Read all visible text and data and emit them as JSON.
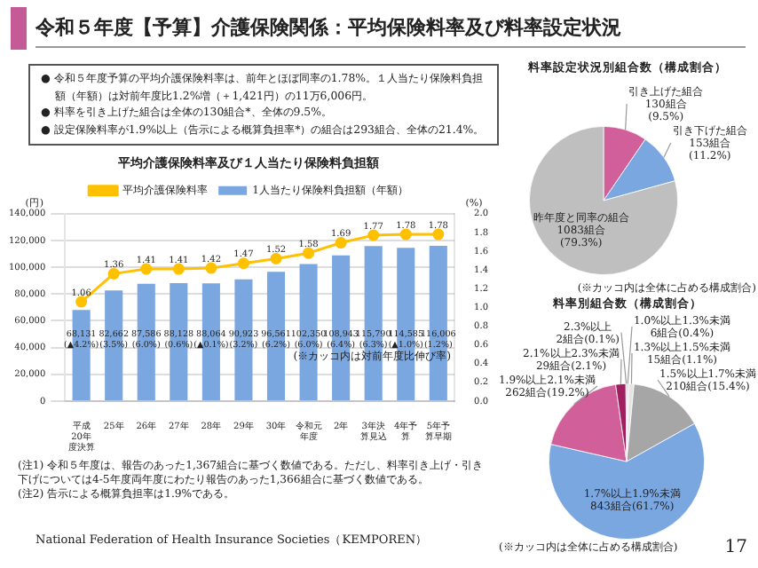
{
  "chart_data": [
    {
      "type": "other",
      "title": "令和５年度【予算】介護保険関係：平均保険料率及び料率設定状況",
      "annotations": [
        "● 令和５年度予算の平均介護保険料率は、前年とほぼ同率の1.78%。１人当たり保険料負担額（年額）は対前年度比1.2%増（＋1,421円）の11万6,006円。",
        "● 料率を引き上げた組合は全体の130組合*、全体の9.5%。",
        "● 設定保険料率が1.9%以上（告示による概算負担率*）の組合は293組合、全体の21.4%。",
        "National Federation of Health Insurance Societies（KEMPOREN）",
        "17"
      ]
    },
    {
      "type": "bar",
      "title": "平均介護保険料率及び１人当たり保険料負担額",
      "ylabel": "(円)",
      "y2label": "(%)",
      "categories": [
        "平成20年度決算",
        "25年",
        "26年",
        "27年",
        "28年",
        "29年",
        "30年",
        "令和元年度",
        "2年",
        "3年決算見込",
        "4年予算",
        "5年予算早期"
      ],
      "series": [
        {
          "name": "1人当たり保険料負担額（年額）",
          "type": "bar",
          "color": "#7ba7e1",
          "values": [
            68131,
            82662,
            87586,
            88128,
            88064,
            90923,
            96561,
            102350,
            108943,
            115790,
            114585,
            116006
          ],
          "value_labels": [
            "68,131\n(▲4.2%)",
            "82,662\n(3.5%)",
            "87,586\n(6.0%)",
            "88,128\n(0.6%)",
            "88,064\n(▲0.1%)",
            "90,923\n(3.2%)",
            "96,561\n(6.2%)",
            "102,350\n(6.0%)",
            "108,943\n(6.4%)",
            "115,790\n(6.3%)",
            "114,585\n(▲1.0%)",
            "116,006\n(1.2%)"
          ]
        },
        {
          "name": "平均介護保険料率",
          "type": "line",
          "axis": "y2",
          "color": "#ffc000",
          "values": [
            1.06,
            1.36,
            1.41,
            1.41,
            1.42,
            1.47,
            1.52,
            1.58,
            1.69,
            1.77,
            1.78,
            1.78
          ],
          "value_labels": [
            "1.06",
            "1.36",
            "1.41",
            "1.41",
            "1.42",
            "1.47",
            "1.52",
            "1.58",
            "1.69",
            "1.77",
            "1.78",
            "1.78"
          ]
        }
      ],
      "ylim": [
        0,
        140000
      ],
      "yticks": [
        {
          "value": 0,
          "label": "0"
        },
        {
          "value": 20000,
          "label": "20,000"
        },
        {
          "value": 40000,
          "label": "40,000"
        },
        {
          "value": 60000,
          "label": "60,000"
        },
        {
          "value": 80000,
          "label": "80,000"
        },
        {
          "value": 100000,
          "label": "100,000"
        },
        {
          "value": 120000,
          "label": "120,000"
        },
        {
          "value": 140000,
          "label": "140,000"
        }
      ],
      "y2lim": [
        0,
        2
      ],
      "y2ticks": [
        {
          "value": 0,
          "label": "0.0"
        },
        {
          "value": 0.2,
          "label": "0.2"
        },
        {
          "value": 0.4,
          "label": "0.4"
        },
        {
          "value": 0.6,
          "label": "0.6"
        },
        {
          "value": 0.8,
          "label": "0.8"
        },
        {
          "value": 1,
          "label": "1.0"
        },
        {
          "value": 1.2,
          "label": "1.2"
        },
        {
          "value": 1.4,
          "label": "1.4"
        },
        {
          "value": 1.6,
          "label": "1.6"
        },
        {
          "value": 1.8,
          "label": "1.8"
        },
        {
          "value": 2,
          "label": "2.0"
        }
      ],
      "grid": "y",
      "legend": "top",
      "marker": "circle",
      "line_style": "solid",
      "annotations": [
        "(※カッコ内は対前年度比伸び率)",
        "(注1) 令和５年度は、報告のあった1,367組合に基づく数値である。ただし、料率引き上げ・引き下げについては4-5年度両年度にわたり報告のあった1,366組合に基づく数値である。",
        "(注2) 告示による概算負担率は1.9%である。"
      ]
    },
    {
      "type": "pie",
      "title": "料率設定状況別組合数（構成割合）",
      "categories": [
        "引き上げた組合",
        "引き下げた組合",
        "昨年度と同率の組合"
      ],
      "values": [
        130,
        153,
        1083
      ],
      "colors": [
        "#d1609a",
        "#7ba7e1",
        "#bfbfbf"
      ],
      "value_labels": [
        "130組合\n(9.5%)",
        "153組合\n(11.2%)",
        "1083組合\n(79.3%)"
      ],
      "annotations": [
        "(※カッコ内は全体に占める構成割合)"
      ]
    },
    {
      "type": "pie",
      "title": "料率別組合数（構成割合）",
      "categories": [
        "1.0%以上1.3%未満",
        "1.3%以上1.5%未満",
        "1.5%以上1.7%未満",
        "1.7%以上1.9%未満",
        "1.9%以上2.1%未満",
        "2.1%以上2.3%未満",
        "2.3%以上"
      ],
      "values": [
        6,
        15,
        210,
        843,
        262,
        29,
        2
      ],
      "colors": [
        "#d0d0d0",
        "#e4e4e4",
        "#a6a6a6",
        "#7ba7e1",
        "#d1609a",
        "#a0205f",
        "#7f7f7f"
      ],
      "value_labels": [
        "6組合(0.4%)",
        "15組合(1.1%)",
        "210組合(15.4%)",
        "843組合(61.7%)",
        "262組合(19.2%)",
        "29組合(2.1%)",
        "2組合(0.1%)"
      ],
      "annotations": [
        "(※カッコ内は全体に占める構成割合)"
      ]
    }
  ]
}
